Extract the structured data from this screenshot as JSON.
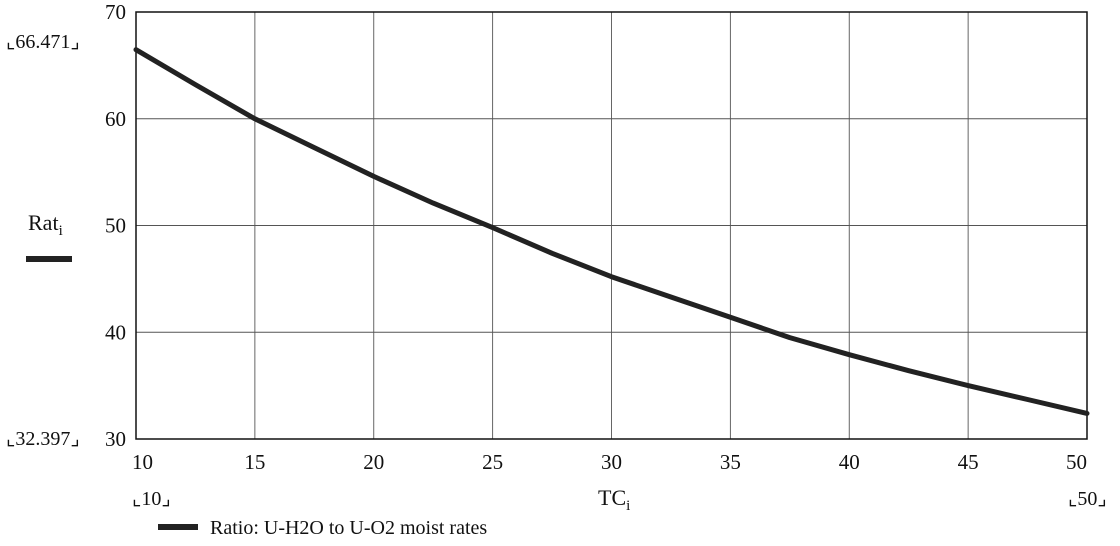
{
  "chart_data": {
    "type": "line",
    "xlabel": "TC",
    "xlabel_sub": "i",
    "ylabel": "Rat",
    "ylabel_sub": "i",
    "xlim": [
      10,
      50
    ],
    "ylim": [
      30,
      70
    ],
    "x_ticks": [
      10,
      15,
      20,
      25,
      30,
      35,
      40,
      45,
      50
    ],
    "y_ticks": [
      30,
      40,
      50,
      60,
      70
    ],
    "grid": true,
    "corner_labels": {
      "y_max": "66.471",
      "y_min": "32.397",
      "x_min": "10",
      "x_max": "50"
    },
    "legend": "Ratio: U-H2O to U-O2 moist rates",
    "series": [
      {
        "name": "Ratio: U-H2O to U-O2 moist rates",
        "color": "#222222",
        "x": [
          10,
          12.5,
          15,
          17.5,
          20,
          22.5,
          25,
          27.5,
          30,
          32.5,
          35,
          37.5,
          40,
          42.5,
          45,
          47.5,
          50
        ],
        "y": [
          66.471,
          63.2,
          60.0,
          57.3,
          54.6,
          52.1,
          49.8,
          47.4,
          45.2,
          43.3,
          41.4,
          39.5,
          37.9,
          36.4,
          35.0,
          33.7,
          32.397
        ]
      }
    ]
  }
}
